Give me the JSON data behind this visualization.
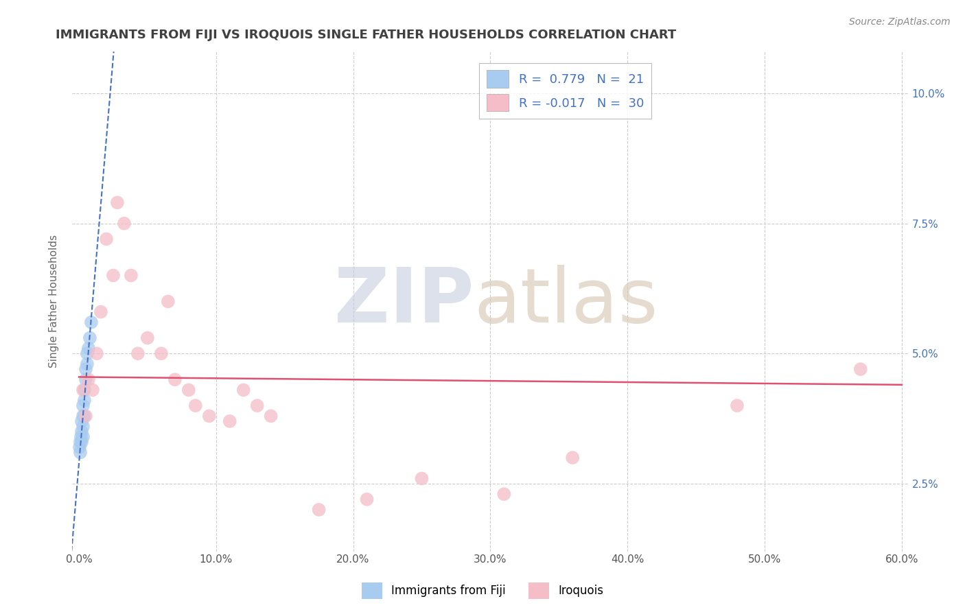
{
  "title": "IMMIGRANTS FROM FIJI VS IROQUOIS SINGLE FATHER HOUSEHOLDS CORRELATION CHART",
  "source": "Source: ZipAtlas.com",
  "xlabel_blue": "Immigrants from Fiji",
  "xlabel_pink": "Iroquois",
  "ylabel": "Single Father Households",
  "xlim": [
    -0.005,
    0.605
  ],
  "ylim": [
    0.012,
    0.108
  ],
  "xticks": [
    0.0,
    0.1,
    0.2,
    0.3,
    0.4,
    0.5,
    0.6
  ],
  "xtick_labels": [
    "0.0%",
    "10.0%",
    "20.0%",
    "30.0%",
    "40.0%",
    "50.0%",
    "60.0%"
  ],
  "yticks": [
    0.025,
    0.05,
    0.075,
    0.1
  ],
  "ytick_labels": [
    "2.5%",
    "5.0%",
    "7.5%",
    "10.0%"
  ],
  "legend_r_blue": "0.779",
  "legend_n_blue": "21",
  "legend_r_pink": "-0.017",
  "legend_n_pink": "30",
  "blue_color": "#A8CBF0",
  "pink_color": "#F5BDC8",
  "trend_blue_color": "#4472C4",
  "trend_pink_color": "#E05070",
  "background_color": "#FFFFFF",
  "grid_color": "#CCCCCC",
  "title_color": "#404040",
  "watermark_zip_color": "#C5CDE0",
  "watermark_atlas_color": "#D4C4B0",
  "blue_scatter_x": [
    0.0005,
    0.001,
    0.001,
    0.0015,
    0.002,
    0.002,
    0.002,
    0.003,
    0.003,
    0.003,
    0.003,
    0.004,
    0.004,
    0.004,
    0.005,
    0.005,
    0.006,
    0.006,
    0.007,
    0.008,
    0.009
  ],
  "blue_scatter_y": [
    0.032,
    0.031,
    0.033,
    0.034,
    0.033,
    0.035,
    0.037,
    0.034,
    0.036,
    0.038,
    0.04,
    0.038,
    0.041,
    0.043,
    0.045,
    0.047,
    0.048,
    0.05,
    0.051,
    0.053,
    0.056
  ],
  "pink_scatter_x": [
    0.003,
    0.005,
    0.007,
    0.01,
    0.013,
    0.016,
    0.02,
    0.025,
    0.028,
    0.033,
    0.038,
    0.043,
    0.05,
    0.06,
    0.065,
    0.07,
    0.08,
    0.085,
    0.095,
    0.11,
    0.12,
    0.13,
    0.14,
    0.175,
    0.21,
    0.25,
    0.31,
    0.36,
    0.48,
    0.57
  ],
  "pink_scatter_y": [
    0.043,
    0.038,
    0.045,
    0.043,
    0.05,
    0.058,
    0.072,
    0.065,
    0.079,
    0.075,
    0.065,
    0.05,
    0.053,
    0.05,
    0.06,
    0.045,
    0.043,
    0.04,
    0.038,
    0.037,
    0.043,
    0.04,
    0.038,
    0.02,
    0.022,
    0.026,
    0.023,
    0.03,
    0.04,
    0.047
  ],
  "trend_pink_y_start": 0.0455,
  "trend_pink_y_end": 0.044,
  "trend_blue_x_start": 0.0,
  "trend_blue_x_end": 0.012,
  "trend_blue_y_start": 0.028,
  "trend_blue_y_end": 0.052
}
